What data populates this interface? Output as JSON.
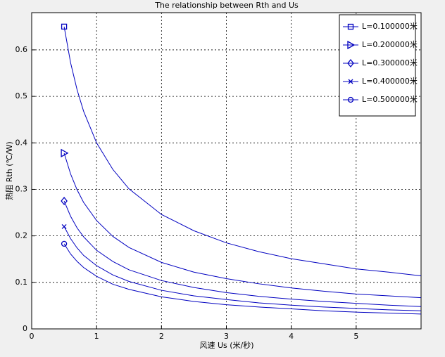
{
  "chart_data": {
    "type": "line",
    "title": "The relationship between Rth and Us",
    "xlabel": "风速 Us (米/秒)",
    "ylabel": "热阻 Rth (℃/W)",
    "x": [
      0.5,
      0.6,
      0.7,
      0.8,
      1,
      1.25,
      1.5,
      2,
      2.5,
      3,
      3.5,
      4,
      4.5,
      5,
      5.5,
      6
    ],
    "series": [
      {
        "name": "L=0.100000米",
        "color": "#0000c0",
        "marker": "square",
        "values": [
          0.65,
          0.572,
          0.514,
          0.468,
          0.4,
          0.343,
          0.301,
          0.246,
          0.211,
          0.185,
          0.166,
          0.151,
          0.14,
          0.129,
          0.122,
          0.114
        ]
      },
      {
        "name": "L=0.200000米",
        "color": "#0000c0",
        "marker": "triangle-right",
        "values": [
          0.378,
          0.333,
          0.299,
          0.272,
          0.233,
          0.199,
          0.175,
          0.143,
          0.122,
          0.108,
          0.097,
          0.088,
          0.081,
          0.075,
          0.071,
          0.067
        ]
      },
      {
        "name": "L=0.300000米",
        "color": "#0000c0",
        "marker": "diamond",
        "values": [
          0.275,
          0.242,
          0.217,
          0.198,
          0.169,
          0.145,
          0.127,
          0.104,
          0.089,
          0.078,
          0.07,
          0.064,
          0.059,
          0.055,
          0.051,
          0.048
        ]
      },
      {
        "name": "L=0.400000米",
        "color": "#0000c0",
        "marker": "x",
        "values": [
          0.22,
          0.194,
          0.174,
          0.158,
          0.136,
          0.116,
          0.102,
          0.083,
          0.071,
          0.063,
          0.056,
          0.051,
          0.047,
          0.044,
          0.041,
          0.039
        ]
      },
      {
        "name": "L=0.500000米",
        "color": "#0000c0",
        "marker": "circle",
        "values": [
          0.183,
          0.161,
          0.145,
          0.132,
          0.113,
          0.096,
          0.085,
          0.069,
          0.059,
          0.052,
          0.047,
          0.043,
          0.039,
          0.036,
          0.034,
          0.032
        ]
      }
    ],
    "xlim": [
      0,
      6
    ],
    "xticks": [
      0,
      1,
      2,
      3,
      4,
      5
    ],
    "ylim": [
      0,
      0.68
    ],
    "yticks": [
      0,
      0.1,
      0.2,
      0.3,
      0.4,
      0.5,
      0.6
    ],
    "grid": true,
    "legend": "northeast"
  }
}
